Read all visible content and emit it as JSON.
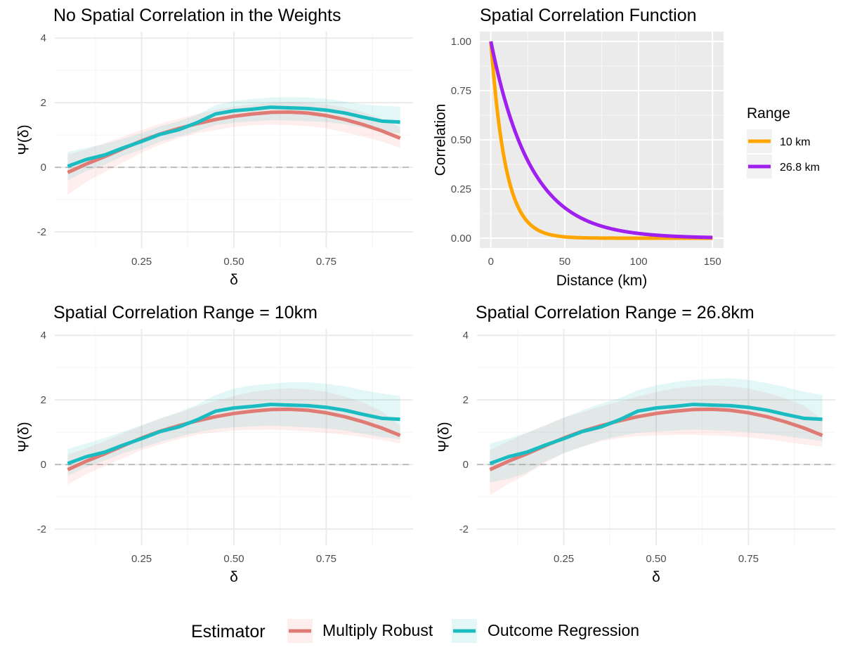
{
  "colors": {
    "multiply_robust": "#F8766D",
    "multiply_robust_line": "#e07a74",
    "outcome_regression": "#1BBCC1",
    "range_10": "#FFA500",
    "range_268": "#A020F0",
    "grid_major": "#ebebeb",
    "panel_bg": "#EBEBEB",
    "zero_line": "#bdbdbd"
  },
  "chart_data": [
    {
      "id": "top-left",
      "type": "line",
      "title": "No Spatial Correlation in the Weights",
      "xlabel": "δ",
      "ylabel": "Ψ(δ)",
      "xlim": [
        0.015,
        0.985
      ],
      "ylim": [
        -2.5,
        4.2
      ],
      "x_ticks": [
        0.25,
        0.5,
        0.75
      ],
      "x_tick_labels": [
        "0.25",
        "0.50",
        "0.75"
      ],
      "y_ticks": [
        -2,
        0,
        2,
        4
      ],
      "y_tick_labels": [
        "-2",
        "0",
        "2",
        "4"
      ],
      "reference_line": 0,
      "x": [
        0.05,
        0.1,
        0.15,
        0.2,
        0.25,
        0.3,
        0.35,
        0.4,
        0.45,
        0.5,
        0.55,
        0.6,
        0.65,
        0.7,
        0.75,
        0.8,
        0.85,
        0.9,
        0.95
      ],
      "series": [
        {
          "name": "Multiply Robust",
          "values": [
            -0.16,
            0.1,
            0.33,
            0.58,
            0.82,
            1.03,
            1.2,
            1.35,
            1.48,
            1.58,
            1.65,
            1.7,
            1.71,
            1.68,
            1.6,
            1.48,
            1.32,
            1.13,
            0.9
          ],
          "lower": [
            -0.85,
            -0.45,
            -0.15,
            0.15,
            0.45,
            0.7,
            0.9,
            1.05,
            1.15,
            1.25,
            1.3,
            1.32,
            1.3,
            1.28,
            1.2,
            1.08,
            0.95,
            0.8,
            0.6
          ],
          "upper": [
            0.4,
            0.55,
            0.75,
            0.95,
            1.15,
            1.35,
            1.5,
            1.65,
            1.78,
            1.88,
            1.95,
            2.0,
            2.02,
            2.0,
            1.95,
            1.85,
            1.7,
            1.5,
            1.25
          ]
        },
        {
          "name": "Outcome Regression",
          "values": [
            0.03,
            0.24,
            0.38,
            0.6,
            0.8,
            1.02,
            1.16,
            1.38,
            1.65,
            1.75,
            1.8,
            1.86,
            1.84,
            1.82,
            1.77,
            1.68,
            1.55,
            1.43,
            1.4
          ],
          "lower": [
            -0.4,
            -0.12,
            0.08,
            0.35,
            0.55,
            0.8,
            0.95,
            1.12,
            1.3,
            1.38,
            1.42,
            1.46,
            1.45,
            1.43,
            1.4,
            1.33,
            1.22,
            1.1,
            1.05
          ],
          "upper": [
            0.48,
            0.6,
            0.72,
            0.88,
            1.06,
            1.27,
            1.42,
            1.62,
            1.92,
            2.05,
            2.12,
            2.16,
            2.17,
            2.16,
            2.12,
            2.03,
            1.95,
            1.9,
            1.88
          ]
        }
      ]
    },
    {
      "id": "top-right",
      "type": "line",
      "title": "Spatial Correlation Function",
      "xlabel": "Distance (km)",
      "ylabel": "Correlation",
      "xlim": [
        -7.5,
        157.5
      ],
      "ylim": [
        -0.05,
        1.05
      ],
      "x_ticks": [
        0,
        50,
        100,
        150
      ],
      "x_tick_labels": [
        "0",
        "50",
        "100",
        "150"
      ],
      "y_ticks": [
        0,
        0.25,
        0.5,
        0.75,
        1
      ],
      "y_tick_labels": [
        "0.00",
        "0.25",
        "0.50",
        "0.75",
        "1.00"
      ],
      "legend": {
        "title": "Range",
        "position": "right",
        "entries": [
          "10 km",
          "26.8 km"
        ]
      },
      "series": [
        {
          "name": "10 km",
          "function": "exp(-x/10)",
          "x_range": [
            0,
            150
          ]
        },
        {
          "name": "26.8 km",
          "function": "exp(-x/26.8)",
          "x_range": [
            0,
            150
          ]
        }
      ]
    },
    {
      "id": "bottom-left",
      "type": "line",
      "title": "Spatial Correlation Range = 10km",
      "xlabel": "δ",
      "ylabel": "Ψ(δ)",
      "xlim": [
        0.015,
        0.985
      ],
      "ylim": [
        -2.5,
        4.2
      ],
      "x_ticks": [
        0.25,
        0.5,
        0.75
      ],
      "x_tick_labels": [
        "0.25",
        "0.50",
        "0.75"
      ],
      "y_ticks": [
        -2,
        0,
        2,
        4
      ],
      "y_tick_labels": [
        "-2",
        "0",
        "2",
        "4"
      ],
      "reference_line": 0,
      "x": [
        0.05,
        0.1,
        0.15,
        0.2,
        0.25,
        0.3,
        0.35,
        0.4,
        0.45,
        0.5,
        0.55,
        0.6,
        0.65,
        0.7,
        0.75,
        0.8,
        0.85,
        0.9,
        0.95
      ],
      "series": [
        {
          "name": "Multiply Robust",
          "values": [
            -0.16,
            0.1,
            0.33,
            0.58,
            0.82,
            1.03,
            1.2,
            1.35,
            1.48,
            1.58,
            1.65,
            1.7,
            1.71,
            1.68,
            1.6,
            1.48,
            1.32,
            1.13,
            0.9
          ],
          "lower": [
            -0.62,
            -0.3,
            -0.05,
            0.2,
            0.45,
            0.62,
            0.78,
            0.92,
            1.0,
            1.05,
            1.07,
            1.08,
            1.06,
            1.03,
            0.98,
            0.92,
            0.85,
            0.76,
            0.65
          ],
          "upper": [
            0.3,
            0.5,
            0.72,
            0.97,
            1.2,
            1.42,
            1.6,
            1.8,
            1.97,
            2.12,
            2.25,
            2.32,
            2.36,
            2.33,
            2.25,
            2.1,
            1.92,
            1.65,
            1.2
          ]
        },
        {
          "name": "Outcome Regression",
          "values": [
            0.03,
            0.24,
            0.38,
            0.6,
            0.8,
            1.02,
            1.16,
            1.38,
            1.65,
            1.75,
            1.8,
            1.86,
            1.84,
            1.82,
            1.77,
            1.68,
            1.55,
            1.43,
            1.4
          ],
          "lower": [
            -0.35,
            -0.08,
            0.12,
            0.35,
            0.52,
            0.7,
            0.85,
            1.0,
            1.1,
            1.15,
            1.18,
            1.2,
            1.18,
            1.15,
            1.12,
            1.05,
            0.95,
            0.85,
            0.78
          ],
          "upper": [
            0.48,
            0.65,
            0.82,
            1.02,
            1.22,
            1.42,
            1.62,
            1.85,
            2.15,
            2.35,
            2.45,
            2.5,
            2.55,
            2.55,
            2.5,
            2.42,
            2.3,
            2.2,
            2.12
          ]
        }
      ]
    },
    {
      "id": "bottom-right",
      "type": "line",
      "title": "Spatial Correlation Range = 26.8km",
      "xlabel": "δ",
      "ylabel": "Ψ(δ)",
      "xlim": [
        0.015,
        0.985
      ],
      "ylim": [
        -2.5,
        4.2
      ],
      "x_ticks": [
        0.25,
        0.5,
        0.75
      ],
      "x_tick_labels": [
        "0.25",
        "0.50",
        "0.75"
      ],
      "y_ticks": [
        -2,
        0,
        2,
        4
      ],
      "y_tick_labels": [
        "-2",
        "0",
        "2",
        "4"
      ],
      "reference_line": 0,
      "x": [
        0.05,
        0.1,
        0.15,
        0.2,
        0.25,
        0.3,
        0.35,
        0.4,
        0.45,
        0.5,
        0.55,
        0.6,
        0.65,
        0.7,
        0.75,
        0.8,
        0.85,
        0.9,
        0.95
      ],
      "series": [
        {
          "name": "Multiply Robust",
          "values": [
            -0.16,
            0.1,
            0.33,
            0.58,
            0.82,
            1.03,
            1.2,
            1.35,
            1.48,
            1.58,
            1.65,
            1.7,
            1.71,
            1.68,
            1.6,
            1.48,
            1.32,
            1.13,
            0.9
          ],
          "lower": [
            -0.95,
            -0.6,
            -0.3,
            0.05,
            0.35,
            0.55,
            0.72,
            0.82,
            0.88,
            0.9,
            0.92,
            0.92,
            0.9,
            0.88,
            0.84,
            0.78,
            0.7,
            0.62,
            0.55
          ],
          "upper": [
            0.45,
            0.72,
            0.98,
            1.22,
            1.45,
            1.62,
            1.8,
            1.95,
            2.1,
            2.25,
            2.35,
            2.42,
            2.45,
            2.42,
            2.35,
            2.22,
            2.05,
            1.82,
            1.4
          ]
        },
        {
          "name": "Outcome Regression",
          "values": [
            0.03,
            0.24,
            0.38,
            0.6,
            0.8,
            1.02,
            1.16,
            1.38,
            1.65,
            1.75,
            1.8,
            1.86,
            1.84,
            1.82,
            1.77,
            1.68,
            1.55,
            1.43,
            1.4
          ],
          "lower": [
            -0.55,
            -0.45,
            -0.25,
            0.1,
            0.35,
            0.55,
            0.75,
            0.88,
            0.98,
            1.02,
            1.05,
            1.08,
            1.06,
            1.04,
            1.0,
            0.95,
            0.88,
            0.8,
            0.72
          ],
          "upper": [
            0.65,
            0.8,
            0.98,
            1.2,
            1.45,
            1.68,
            1.88,
            2.05,
            2.3,
            2.45,
            2.55,
            2.62,
            2.65,
            2.67,
            2.62,
            2.52,
            2.4,
            2.25,
            2.15
          ]
        }
      ]
    }
  ],
  "legend": {
    "title": "Estimator",
    "entries": [
      "Multiply Robust",
      "Outcome Regression"
    ]
  }
}
